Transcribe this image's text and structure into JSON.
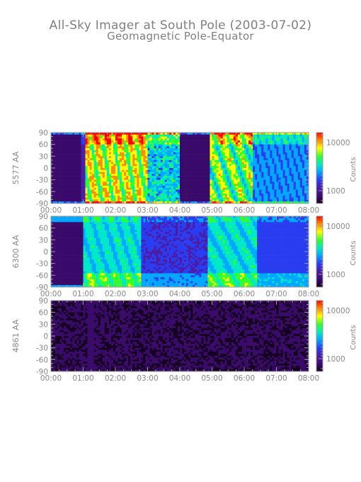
{
  "title": "All-Sky Imager at South Pole (2003-07-02)",
  "subtitle": "Geomagnetic Pole-Equator",
  "colors": {
    "axis": "#9a9a9a",
    "text": "#888888",
    "colormap": [
      "#14001e",
      "#3a0a6a",
      "#4a1ca8",
      "#2a3cf0",
      "#00a8ff",
      "#00e8c8",
      "#30ff30",
      "#ffff00",
      "#ff8c00",
      "#ff0000"
    ]
  },
  "chart_data": [
    {
      "type": "heatmap",
      "ylabel": "5577 AA",
      "x_ticks": [
        "00:00",
        "01:00",
        "02:00",
        "03:00",
        "04:00",
        "05:00",
        "06:00",
        "07:00",
        "08:00"
      ],
      "y_ticks": [
        "90",
        "60",
        "30",
        "0",
        "-30",
        "-60",
        "-90"
      ],
      "xlim": [
        0,
        8
      ],
      "ylim": [
        -90,
        90
      ],
      "colorbar": {
        "label": "Counts",
        "ticks": [
          "10000",
          "1000"
        ],
        "scale": "log"
      }
    },
    {
      "type": "heatmap",
      "ylabel": "6300 AA",
      "x_ticks": [
        "00:00",
        "01:00",
        "02:00",
        "03:00",
        "04:00",
        "05:00",
        "06:00",
        "07:00",
        "08:00"
      ],
      "y_ticks": [
        "90",
        "60",
        "30",
        "0",
        "-30",
        "-60",
        "-90"
      ],
      "xlim": [
        0,
        8
      ],
      "ylim": [
        -90,
        90
      ],
      "colorbar": {
        "label": "Counts",
        "ticks": [
          "10000",
          "1000"
        ],
        "scale": "log"
      }
    },
    {
      "type": "heatmap",
      "ylabel": "4861 AA",
      "x_ticks": [
        "00:00",
        "01:00",
        "02:00",
        "03:00",
        "04:00",
        "05:00",
        "06:00",
        "07:00",
        "08:00"
      ],
      "y_ticks": [
        "90",
        "60",
        "30",
        "0",
        "-30",
        "-60",
        "-90"
      ],
      "xlim": [
        0,
        8
      ],
      "ylim": [
        -90,
        90
      ],
      "colorbar": {
        "label": "Counts",
        "ticks": [
          "10000",
          "1000"
        ],
        "scale": "log"
      }
    }
  ]
}
